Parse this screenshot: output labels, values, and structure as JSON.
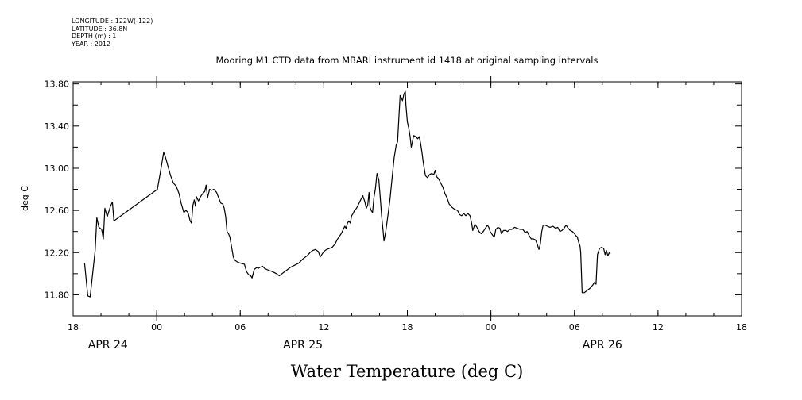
{
  "header": {
    "lines": [
      "LONGITUDE : 122W(-122)",
      "LATITUDE : 36.8N",
      "DEPTH (m) : 1",
      "YEAR : 2012"
    ]
  },
  "chart_data": {
    "type": "line",
    "title": "Mooring M1 CTD data from MBARI instrument id 1418 at original sampling intervals",
    "xlabel": "Water Temperature (deg C)",
    "ylabel": "deg C",
    "ylim": [
      11.6,
      13.82
    ],
    "y_ticks": [
      "11.80",
      "12.20",
      "12.60",
      "13.00",
      "13.40",
      "13.80"
    ],
    "y_tick_values": [
      11.8,
      12.2,
      12.6,
      13.0,
      13.4,
      13.8
    ],
    "x_unit": "hours since 18:00 Apr 23, 2012",
    "xlim": [
      0,
      48
    ],
    "x_ticks": [
      {
        "hour": 0,
        "label": "18"
      },
      {
        "hour": 6,
        "label": "00"
      },
      {
        "hour": 12,
        "label": "06"
      },
      {
        "hour": 18,
        "label": "12"
      },
      {
        "hour": 24,
        "label": "18"
      },
      {
        "hour": 30,
        "label": "00"
      },
      {
        "hour": 36,
        "label": "06"
      },
      {
        "hour": 42,
        "label": "12"
      },
      {
        "hour": 48,
        "label": "18"
      }
    ],
    "day_labels": [
      {
        "hour": 2.5,
        "label": "APR 24"
      },
      {
        "hour": 16.5,
        "label": "APR 25"
      },
      {
        "hour": 38.0,
        "label": "APR 26"
      }
    ],
    "grid": false,
    "series": [
      {
        "points": [
          [
            0.82,
            12.1
          ],
          [
            1.05,
            11.79
          ],
          [
            1.22,
            11.78
          ],
          [
            1.58,
            12.22
          ],
          [
            1.7,
            12.53
          ],
          [
            1.85,
            12.44
          ],
          [
            2.05,
            12.42
          ],
          [
            2.17,
            12.33
          ],
          [
            2.28,
            12.62
          ],
          [
            2.45,
            12.54
          ],
          [
            2.68,
            12.64
          ],
          [
            2.82,
            12.68
          ],
          [
            2.93,
            12.5
          ],
          [
            6.05,
            12.8
          ],
          [
            6.25,
            12.95
          ],
          [
            6.5,
            13.15
          ],
          [
            6.6,
            13.12
          ],
          [
            6.85,
            13.0
          ],
          [
            7.0,
            12.93
          ],
          [
            7.2,
            12.86
          ],
          [
            7.4,
            12.83
          ],
          [
            7.6,
            12.76
          ],
          [
            7.75,
            12.67
          ],
          [
            7.95,
            12.58
          ],
          [
            8.1,
            12.6
          ],
          [
            8.25,
            12.58
          ],
          [
            8.4,
            12.5
          ],
          [
            8.5,
            12.48
          ],
          [
            8.6,
            12.65
          ],
          [
            8.7,
            12.7
          ],
          [
            8.78,
            12.64
          ],
          [
            8.85,
            12.73
          ],
          [
            9.0,
            12.69
          ],
          [
            9.15,
            12.73
          ],
          [
            9.3,
            12.76
          ],
          [
            9.45,
            12.78
          ],
          [
            9.55,
            12.84
          ],
          [
            9.65,
            12.72
          ],
          [
            9.8,
            12.8
          ],
          [
            9.95,
            12.79
          ],
          [
            10.1,
            12.8
          ],
          [
            10.3,
            12.77
          ],
          [
            10.45,
            12.72
          ],
          [
            10.6,
            12.67
          ],
          [
            10.75,
            12.66
          ],
          [
            10.85,
            12.62
          ],
          [
            10.95,
            12.54
          ],
          [
            11.05,
            12.4
          ],
          [
            11.15,
            12.38
          ],
          [
            11.25,
            12.35
          ],
          [
            11.4,
            12.24
          ],
          [
            11.5,
            12.16
          ],
          [
            11.6,
            12.13
          ],
          [
            11.8,
            12.11
          ],
          [
            12.0,
            12.1
          ],
          [
            12.3,
            12.09
          ],
          [
            12.45,
            12.02
          ],
          [
            12.6,
            11.99
          ],
          [
            12.75,
            11.98
          ],
          [
            12.85,
            11.96
          ],
          [
            13.0,
            12.04
          ],
          [
            13.2,
            12.06
          ],
          [
            13.3,
            12.05
          ],
          [
            13.4,
            12.06
          ],
          [
            13.6,
            12.07
          ],
          [
            13.75,
            12.05
          ],
          [
            13.9,
            12.04
          ],
          [
            14.1,
            12.03
          ],
          [
            14.3,
            12.02
          ],
          [
            14.6,
            12.0
          ],
          [
            14.8,
            11.98
          ],
          [
            15.0,
            12.0
          ],
          [
            15.3,
            12.03
          ],
          [
            15.6,
            12.06
          ],
          [
            15.9,
            12.08
          ],
          [
            16.2,
            12.1
          ],
          [
            16.5,
            12.14
          ],
          [
            16.8,
            12.17
          ],
          [
            17.0,
            12.2
          ],
          [
            17.2,
            12.22
          ],
          [
            17.4,
            12.23
          ],
          [
            17.6,
            12.21
          ],
          [
            17.75,
            12.16
          ],
          [
            17.85,
            12.18
          ],
          [
            18.0,
            12.21
          ],
          [
            18.2,
            12.23
          ],
          [
            18.4,
            12.24
          ],
          [
            18.6,
            12.25
          ],
          [
            18.8,
            12.28
          ],
          [
            18.95,
            12.32
          ],
          [
            19.1,
            12.35
          ],
          [
            19.25,
            12.38
          ],
          [
            19.4,
            12.42
          ],
          [
            19.5,
            12.45
          ],
          [
            19.6,
            12.43
          ],
          [
            19.7,
            12.48
          ],
          [
            19.8,
            12.5
          ],
          [
            19.9,
            12.48
          ],
          [
            20.0,
            12.55
          ],
          [
            20.1,
            12.57
          ],
          [
            20.2,
            12.6
          ],
          [
            20.35,
            12.62
          ],
          [
            20.5,
            12.66
          ],
          [
            20.65,
            12.7
          ],
          [
            20.8,
            12.74
          ],
          [
            20.95,
            12.68
          ],
          [
            21.05,
            12.62
          ],
          [
            21.15,
            12.65
          ],
          [
            21.25,
            12.77
          ],
          [
            21.32,
            12.63
          ],
          [
            21.4,
            12.6
          ],
          [
            21.5,
            12.58
          ],
          [
            21.6,
            12.72
          ],
          [
            21.7,
            12.8
          ],
          [
            21.82,
            12.95
          ],
          [
            21.95,
            12.89
          ],
          [
            22.05,
            12.73
          ],
          [
            22.15,
            12.55
          ],
          [
            22.25,
            12.42
          ],
          [
            22.32,
            12.31
          ],
          [
            22.45,
            12.4
          ],
          [
            22.6,
            12.55
          ],
          [
            22.75,
            12.7
          ],
          [
            22.9,
            12.9
          ],
          [
            23.05,
            13.1
          ],
          [
            23.2,
            13.22
          ],
          [
            23.3,
            13.25
          ],
          [
            23.4,
            13.5
          ],
          [
            23.48,
            13.69
          ],
          [
            23.56,
            13.67
          ],
          [
            23.65,
            13.64
          ],
          [
            23.75,
            13.7
          ],
          [
            23.85,
            13.73
          ],
          [
            23.9,
            13.6
          ],
          [
            24.0,
            13.44
          ],
          [
            24.1,
            13.38
          ],
          [
            24.2,
            13.3
          ],
          [
            24.28,
            13.2
          ],
          [
            24.35,
            13.24
          ],
          [
            24.45,
            13.31
          ],
          [
            24.6,
            13.3
          ],
          [
            24.75,
            13.28
          ],
          [
            24.85,
            13.3
          ],
          [
            24.95,
            13.24
          ],
          [
            25.05,
            13.15
          ],
          [
            25.15,
            13.05
          ],
          [
            25.3,
            12.93
          ],
          [
            25.45,
            12.91
          ],
          [
            25.6,
            12.94
          ],
          [
            25.75,
            12.95
          ],
          [
            25.9,
            12.94
          ],
          [
            26.0,
            12.98
          ],
          [
            26.1,
            12.92
          ],
          [
            26.25,
            12.9
          ],
          [
            26.4,
            12.86
          ],
          [
            26.55,
            12.82
          ],
          [
            26.7,
            12.76
          ],
          [
            26.85,
            12.72
          ],
          [
            27.0,
            12.66
          ],
          [
            27.2,
            12.63
          ],
          [
            27.4,
            12.61
          ],
          [
            27.6,
            12.6
          ],
          [
            27.75,
            12.56
          ],
          [
            27.9,
            12.55
          ],
          [
            28.05,
            12.57
          ],
          [
            28.2,
            12.55
          ],
          [
            28.35,
            12.57
          ],
          [
            28.5,
            12.55
          ],
          [
            28.62,
            12.48
          ],
          [
            28.7,
            12.41
          ],
          [
            28.85,
            12.47
          ],
          [
            29.0,
            12.44
          ],
          [
            29.15,
            12.4
          ],
          [
            29.3,
            12.38
          ],
          [
            29.45,
            12.4
          ],
          [
            29.6,
            12.43
          ],
          [
            29.75,
            12.46
          ],
          [
            29.85,
            12.44
          ],
          [
            29.95,
            12.4
          ],
          [
            30.05,
            12.38
          ],
          [
            30.15,
            12.36
          ],
          [
            30.25,
            12.35
          ],
          [
            30.35,
            12.42
          ],
          [
            30.5,
            12.44
          ],
          [
            30.65,
            12.43
          ],
          [
            30.75,
            12.38
          ],
          [
            30.9,
            12.41
          ],
          [
            31.05,
            12.41
          ],
          [
            31.2,
            12.4
          ],
          [
            31.35,
            12.42
          ],
          [
            31.5,
            12.42
          ],
          [
            31.7,
            12.44
          ],
          [
            31.9,
            12.43
          ],
          [
            32.1,
            12.42
          ],
          [
            32.3,
            12.42
          ],
          [
            32.45,
            12.39
          ],
          [
            32.6,
            12.4
          ],
          [
            32.75,
            12.36
          ],
          [
            32.9,
            12.33
          ],
          [
            33.05,
            12.33
          ],
          [
            33.2,
            12.32
          ],
          [
            33.3,
            12.29
          ],
          [
            33.45,
            12.23
          ],
          [
            33.55,
            12.28
          ],
          [
            33.65,
            12.4
          ],
          [
            33.75,
            12.46
          ],
          [
            33.9,
            12.46
          ],
          [
            34.05,
            12.45
          ],
          [
            34.25,
            12.44
          ],
          [
            34.45,
            12.45
          ],
          [
            34.65,
            12.43
          ],
          [
            34.8,
            12.44
          ],
          [
            34.95,
            12.4
          ],
          [
            35.1,
            12.41
          ],
          [
            35.25,
            12.43
          ],
          [
            35.4,
            12.46
          ],
          [
            35.55,
            12.43
          ],
          [
            35.7,
            12.41
          ],
          [
            35.85,
            12.4
          ],
          [
            36.0,
            12.38
          ],
          [
            36.1,
            12.36
          ],
          [
            36.2,
            12.35
          ],
          [
            36.3,
            12.3
          ],
          [
            36.4,
            12.26
          ],
          [
            36.45,
            12.2
          ],
          [
            36.55,
            11.82
          ],
          [
            36.7,
            11.82
          ],
          [
            36.9,
            11.84
          ],
          [
            37.1,
            11.86
          ],
          [
            37.3,
            11.89
          ],
          [
            37.45,
            11.92
          ],
          [
            37.55,
            11.9
          ],
          [
            37.65,
            12.18
          ],
          [
            37.8,
            12.24
          ],
          [
            37.95,
            12.25
          ],
          [
            38.1,
            12.24
          ],
          [
            38.2,
            12.18
          ],
          [
            38.3,
            12.22
          ],
          [
            38.4,
            12.17
          ],
          [
            38.5,
            12.2
          ],
          [
            38.58,
            12.19
          ]
        ]
      }
    ]
  }
}
